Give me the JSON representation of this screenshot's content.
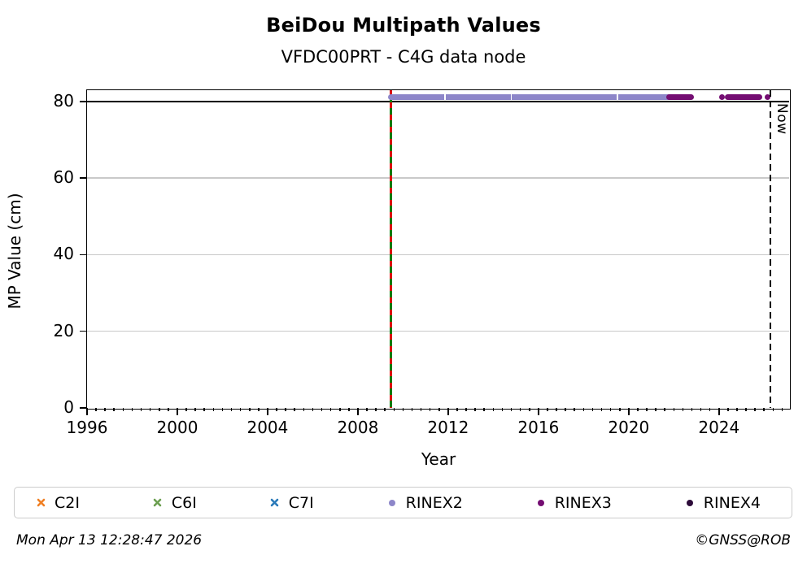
{
  "footer": {
    "timestamp": "Mon Apr 13 12:28:47 2026",
    "credit": "©GNSS@ROB"
  },
  "chart_data": {
    "type": "scatter",
    "title": "BeiDou Multipath Values",
    "subtitle": "VFDC00PRT - C4G data node",
    "xlabel": "Year",
    "ylabel": "MP Value (cm)",
    "xlim": [
      1996,
      2027.1
    ],
    "ylim": [
      0,
      83
    ],
    "xticks_major": [
      1996,
      2000,
      2004,
      2008,
      2012,
      2016,
      2020,
      2024
    ],
    "xtick_minor_step": 0.4,
    "yticks": [
      0,
      20,
      40,
      60,
      80
    ],
    "grid": {
      "orientation": "horizontal",
      "at": [
        20,
        40,
        60
      ],
      "color": "#c9c9c9"
    },
    "threshold_line": {
      "y": 80,
      "color": "#000000"
    },
    "event_line": {
      "x": 2009.45,
      "solid_color": "#0c7c0c",
      "dash_color": "#dd1111",
      "note": "green solid with red dashes, marks data start"
    },
    "now_line": {
      "x": 2026.28,
      "label": "Now",
      "color": "#000000",
      "style": "dashed"
    },
    "series": [
      {
        "name": "C2I",
        "marker": "x",
        "color": "#f07f23",
        "segments": [],
        "points": []
      },
      {
        "name": "C6I",
        "marker": "x",
        "color": "#6a9e4f",
        "segments": [],
        "points": []
      },
      {
        "name": "C7I",
        "marker": "x",
        "color": "#2979b9",
        "segments": [],
        "points": []
      },
      {
        "name": "RINEX2",
        "marker": "dot",
        "color": "#8d86c9",
        "segments": [
          {
            "x_start": 2009.45,
            "x_end": 2021.9,
            "y": 81.3
          }
        ],
        "gaps_x": [
          2011.85,
          2014.8,
          2019.5
        ],
        "points": []
      },
      {
        "name": "RINEX3",
        "marker": "dot",
        "color": "#740d72",
        "segments": [
          {
            "x_start": 2021.8,
            "x_end": 2022.75,
            "y": 81.3
          },
          {
            "x_start": 2024.4,
            "x_end": 2025.8,
            "y": 81.3
          }
        ],
        "points": [
          {
            "x": 2024.15,
            "y": 81.3
          },
          {
            "x": 2026.15,
            "y": 81.3
          }
        ]
      },
      {
        "name": "RINEX4",
        "marker": "dot",
        "color": "#2d0c3a",
        "segments": [],
        "points": []
      }
    ]
  }
}
